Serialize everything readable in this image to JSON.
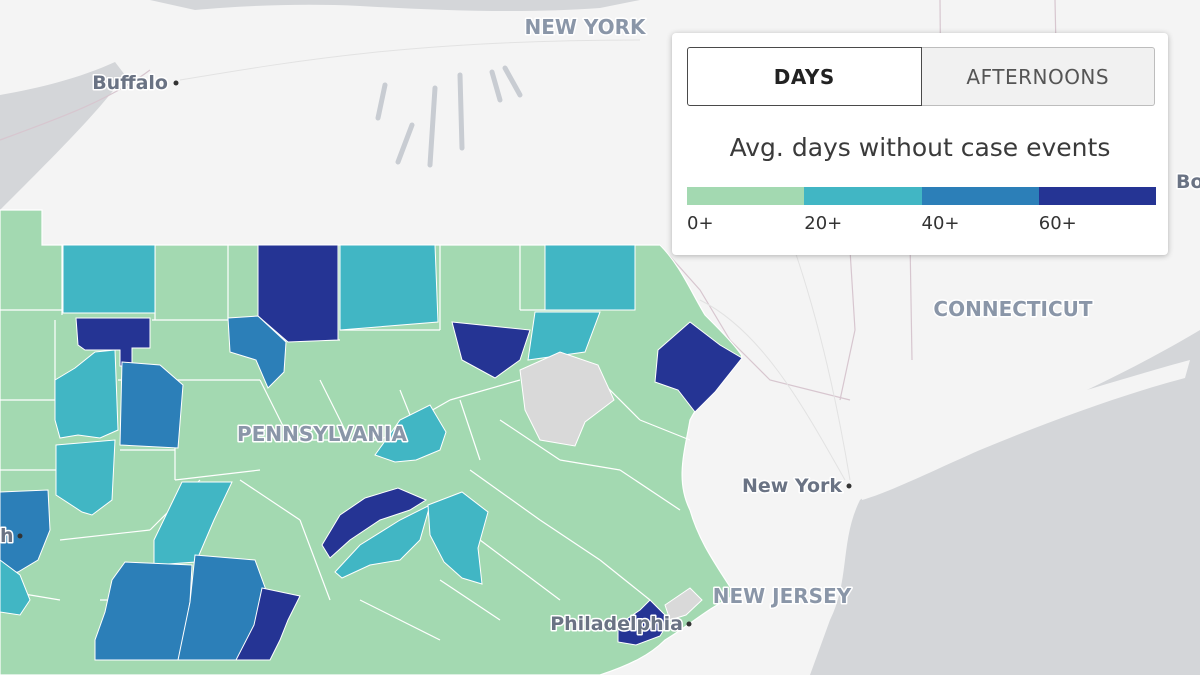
{
  "map": {
    "place_labels": {
      "new_york_state": "NEW YORK",
      "connecticut": "CONNECTICUT",
      "pennsylvania": "PENNSYLVANIA",
      "new_jersey": "NEW JERSEY"
    },
    "cities": {
      "buffalo": "Buffalo",
      "new_york": "New York",
      "philadelphia": "Philadelphia",
      "edge_right": "Bo",
      "edge_left": "h"
    },
    "colors": {
      "bin_0": "#a3d9b1",
      "bin_20": "#41b6c4",
      "bin_40": "#2c7fb8",
      "bin_60": "#253494",
      "no_data": "#d9d9d9",
      "land": "#f4f4f4",
      "water": "#d4d6d9"
    }
  },
  "controls": {
    "toggle": {
      "days_label": "DAYS",
      "afternoons_label": "AFTERNOONS",
      "selected": "DAYS"
    }
  },
  "legend": {
    "title": "Avg. days without case events",
    "bins": [
      {
        "label": "0+",
        "color": "#a3d9b1"
      },
      {
        "label": "20+",
        "color": "#41b6c4"
      },
      {
        "label": "40+",
        "color": "#2c7fb8"
      },
      {
        "label": "60+",
        "color": "#253494"
      }
    ]
  }
}
